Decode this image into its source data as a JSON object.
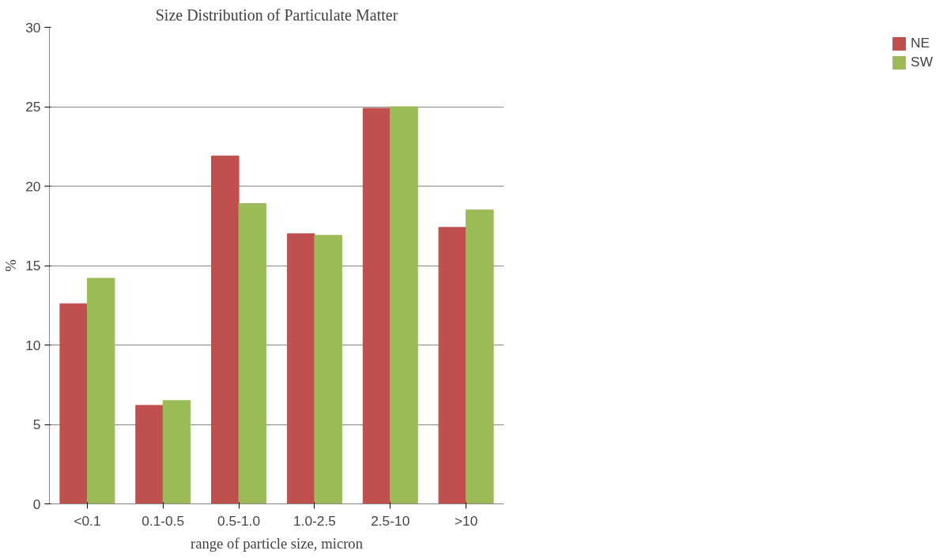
{
  "chart_data": {
    "type": "bar",
    "title": "Size Distribution of Particulate Matter",
    "xlabel": "range of particle size, micron",
    "ylabel": "%",
    "categories": [
      "<0.1",
      "0.1-0.5",
      "0.5-1.0",
      "1.0-2.5",
      "2.5-10",
      ">10"
    ],
    "series": [
      {
        "name": "NE",
        "color": "#c0504d",
        "values": [
          12.6,
          6.2,
          21.9,
          17.0,
          24.9,
          17.4
        ]
      },
      {
        "name": "SW",
        "color": "#9bbb59",
        "values": [
          14.2,
          6.5,
          18.9,
          16.9,
          25.0,
          18.5
        ]
      }
    ],
    "ylim": [
      0,
      30
    ],
    "yticks": [
      0,
      5,
      10,
      15,
      20,
      25,
      30
    ],
    "grid": "y",
    "legend": "right"
  }
}
